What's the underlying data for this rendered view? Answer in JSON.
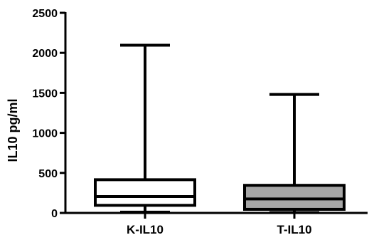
{
  "chart_data": {
    "type": "box",
    "title": "",
    "xlabel": "",
    "ylabel": "IL10 pg/ml",
    "ylim": [
      0,
      2500
    ],
    "yticks": [
      0,
      500,
      1000,
      1500,
      2000,
      2500
    ],
    "ytick_labels": [
      "0",
      "500",
      "1000",
      "1500",
      "2000",
      "2500"
    ],
    "grid": false,
    "legend": "none",
    "categories": [
      "K-IL10",
      "T-IL10"
    ],
    "boxes": [
      {
        "category": "K-IL10",
        "min": 10,
        "q1": 95,
        "median": 205,
        "q3": 415,
        "max": 2095,
        "fill": "#ffffff"
      },
      {
        "category": "T-IL10",
        "min": 5,
        "q1": 45,
        "median": 175,
        "q3": 345,
        "max": 1480,
        "fill": "#a6a6a6"
      }
    ]
  }
}
